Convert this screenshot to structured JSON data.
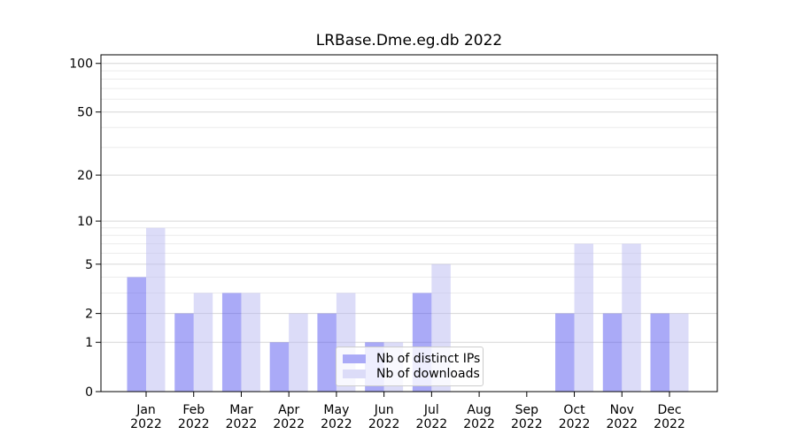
{
  "figure": {
    "background": "#ffffff"
  },
  "chart_data": {
    "type": "bar",
    "title": "LRBase.Dme.eg.db 2022",
    "categories": [
      "Jan",
      "Feb",
      "Mar",
      "Apr",
      "May",
      "Jun",
      "Jul",
      "Aug",
      "Sep",
      "Oct",
      "Nov",
      "Dec"
    ],
    "category_year": "2022",
    "series": [
      {
        "name": "Nb of distinct IPs",
        "base_color": "#5555f0",
        "swatch_color": "#aaaaf7",
        "values": [
          4,
          2,
          3,
          1,
          2,
          1,
          3,
          0,
          0,
          2,
          2,
          2
        ]
      },
      {
        "name": "Nb of downloads",
        "base_color": "#babaf2",
        "swatch_color": "#dcdcf8",
        "values": [
          9,
          3,
          3,
          2,
          3,
          1,
          5,
          0,
          0,
          7,
          7,
          2
        ]
      }
    ],
    "fill_opacity": 0.5,
    "yscale": "log1p",
    "ylim": [
      0,
      113
    ],
    "y_major_ticks": [
      0,
      1,
      2,
      5,
      10,
      20,
      50,
      100
    ],
    "y_minor_gridlines": [
      3,
      4,
      6,
      7,
      8,
      9,
      30,
      40,
      60,
      70,
      80,
      90
    ],
    "grid": true,
    "xlabel": "",
    "ylabel": "",
    "legend_position": "lower center"
  },
  "colors": {
    "grid_major": "#d6d6d6",
    "grid_minor": "#ececec",
    "axis_frame": "#000000",
    "tick": "#000000",
    "text": "#000000",
    "legend_border": "#cccccc",
    "legend_bg": "rgba(255,255,255,0.8)"
  }
}
